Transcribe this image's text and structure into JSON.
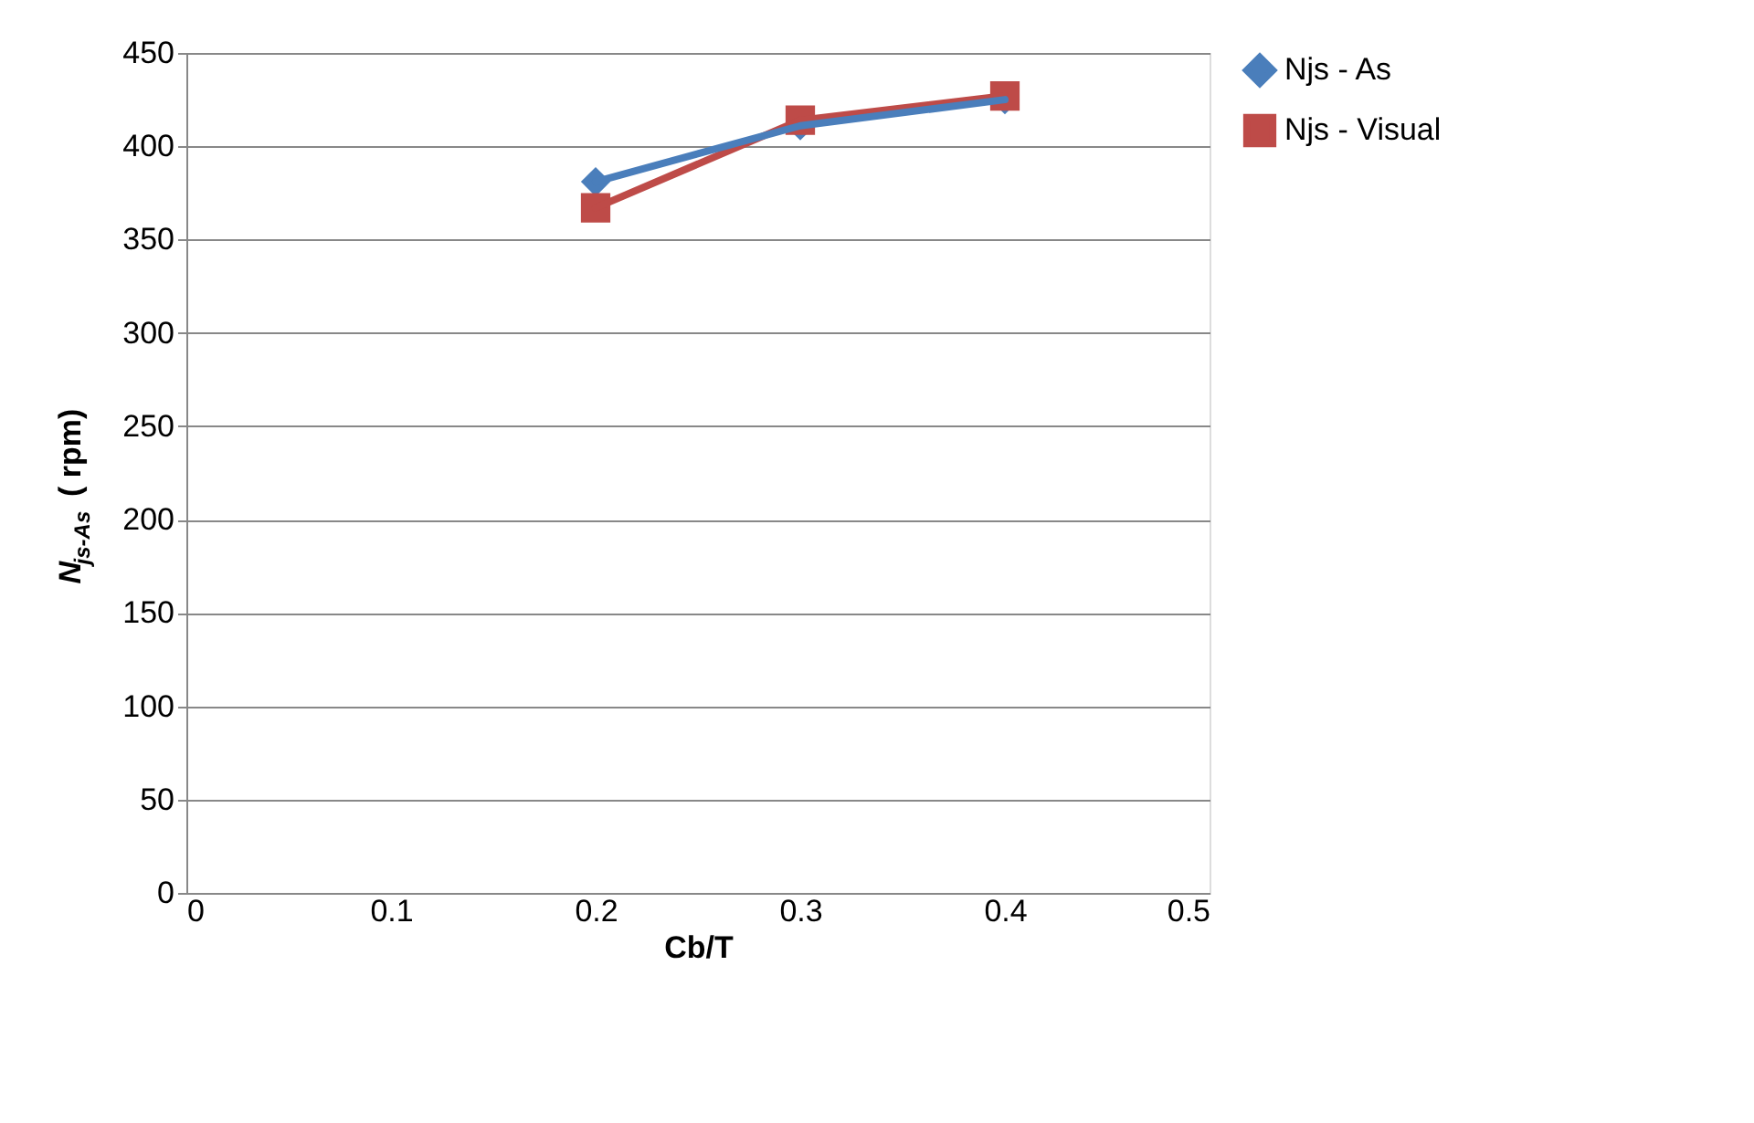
{
  "chart_data": {
    "type": "line",
    "xlabel": "Cb/T",
    "ylabel": "N$_{js-As}$ ( rpm)",
    "x": [
      0.2,
      0.3,
      0.4
    ],
    "series": [
      {
        "name": "Njs - As",
        "color": "#4a7ebb",
        "marker": "diamond",
        "values": [
          381,
          411,
          425
        ]
      },
      {
        "name": "Njs - Visual",
        "color": "#be4b48",
        "marker": "square",
        "values": [
          367,
          414,
          427
        ]
      }
    ],
    "xlim": [
      0,
      0.5
    ],
    "xticks": [
      0,
      0.1,
      0.2,
      0.3,
      0.4,
      0.5
    ],
    "ylim": [
      0,
      450
    ],
    "yticks": [
      0,
      50,
      100,
      150,
      200,
      250,
      300,
      350,
      400,
      450
    ],
    "grid": "y",
    "legend": "right",
    "line_style": "solid"
  }
}
